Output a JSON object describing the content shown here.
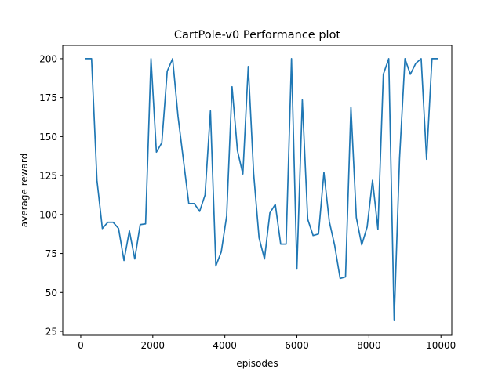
{
  "chart_data": {
    "type": "line",
    "title": "CartPole-v0 Performance plot",
    "xlabel": "episodes",
    "ylabel": "average reward",
    "xlim": [
      -500,
      10300
    ],
    "ylim": [
      22.5,
      208.5
    ],
    "xticks": [
      0,
      2000,
      4000,
      6000,
      8000,
      10000
    ],
    "xtick_labels": [
      "0",
      "2000",
      "4000",
      "6000",
      "8000",
      "10000"
    ],
    "yticks": [
      25,
      50,
      75,
      100,
      125,
      150,
      175,
      200
    ],
    "ytick_labels": [
      "25",
      "50",
      "75",
      "100",
      "125",
      "150",
      "175",
      "200"
    ],
    "grid": false,
    "legend": "none",
    "series": [
      {
        "color": "#1f77b4",
        "x": [
          150,
          300,
          450,
          600,
          750,
          900,
          1050,
          1200,
          1350,
          1500,
          1650,
          1800,
          1950,
          2100,
          2250,
          2400,
          2550,
          2700,
          2850,
          3000,
          3150,
          3300,
          3450,
          3600,
          3750,
          3900,
          4050,
          4200,
          4350,
          4500,
          4650,
          4800,
          4950,
          5100,
          5250,
          5400,
          5550,
          5700,
          5850,
          6000,
          6150,
          6300,
          6450,
          6600,
          6750,
          6900,
          7050,
          7200,
          7350,
          7500,
          7650,
          7800,
          7950,
          8100,
          8250,
          8400,
          8550,
          8700,
          8850,
          9000,
          9150,
          9300,
          9450,
          9600,
          9750,
          9900
        ],
        "y": [
          200,
          200,
          122,
          91,
          95,
          95,
          91,
          70.5,
          89.5,
          71.5,
          93.5,
          94,
          200,
          140,
          146,
          192,
          200,
          163,
          135,
          107,
          107,
          102,
          112.5,
          166.5,
          67,
          76,
          99,
          182,
          141,
          126,
          195,
          126,
          85,
          71.5,
          101,
          106.5,
          81,
          81,
          200,
          65,
          173.5,
          97,
          86.5,
          87.5,
          127,
          95.5,
          80,
          59,
          60,
          169,
          98,
          80.5,
          92,
          122,
          90.5,
          190,
          200,
          32,
          136,
          200,
          190,
          197,
          200,
          135.5,
          200,
          200
        ]
      }
    ]
  }
}
